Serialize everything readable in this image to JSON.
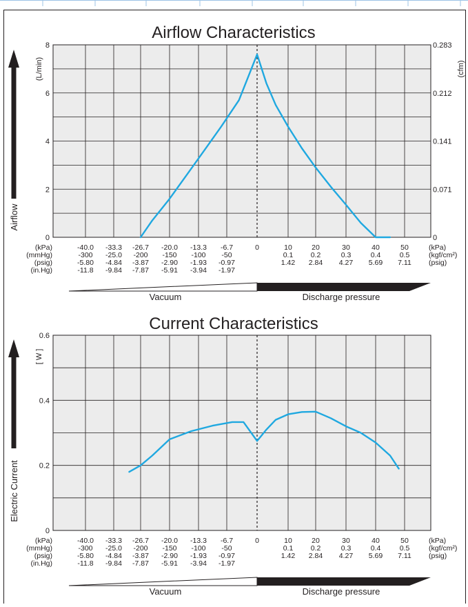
{
  "colors": {
    "curve": "#1fa8e0",
    "plot_bg": "#ececec",
    "grid": "#231f20",
    "arrow_dark": "#231f20",
    "arrow_light": "#ffffff"
  },
  "row_labels": [
    "(kPa)",
    "(mmHg)",
    "(psig)",
    "(in.Hg)"
  ],
  "right_row_labels": [
    "(kPa)",
    "(kgf/cm²)",
    "(psig)"
  ],
  "vacuum_columns": [
    [
      "-40.0",
      "-300",
      "-5.80",
      "-11.8"
    ],
    [
      "-33.3",
      "-25.0",
      "-4.84",
      "-9.84"
    ],
    [
      "-26.7",
      "-200",
      "-3.87",
      "-7.87"
    ],
    [
      "-20.0",
      "-150",
      "-2.90",
      "-5.91"
    ],
    [
      "-13.3",
      "-100",
      "-1.93",
      "-3.94"
    ],
    [
      "-6.7",
      "-50",
      "-0.97",
      "-1.97"
    ]
  ],
  "zero_label": "0",
  "pressure_columns": [
    [
      "10",
      "0.1",
      "1.42"
    ],
    [
      "20",
      "0.2",
      "2.84"
    ],
    [
      "30",
      "0.3",
      "4.27"
    ],
    [
      "40",
      "0.4",
      "5.69"
    ],
    [
      "50",
      "0.5",
      "7.11"
    ]
  ],
  "arrows": {
    "vacuum": "Vacuum",
    "discharge": "Discharge pressure"
  },
  "chart_data": [
    {
      "type": "line",
      "title": "Airflow Characteristics",
      "ylabel": "Airflow",
      "yunit": "(L/min)",
      "y2unit": "(cfm)",
      "xlim": [
        -40,
        50
      ],
      "ylim": [
        0,
        8
      ],
      "yticks": [
        "0",
        "2",
        "4",
        "6",
        "8"
      ],
      "y2ticks": [
        "0",
        "0.071",
        "0.141",
        "0.212",
        "0.283"
      ],
      "grid": true,
      "x": [
        -26.7,
        -24,
        -20,
        -16,
        -12,
        -8,
        -4,
        0,
        3,
        6,
        10,
        15,
        20,
        25,
        30,
        35,
        40,
        45
      ],
      "y": [
        0,
        0.7,
        1.6,
        2.6,
        3.6,
        4.6,
        5.7,
        7.6,
        6.4,
        5.5,
        4.6,
        3.7,
        2.9,
        2.1,
        1.35,
        0.6,
        0,
        0
      ]
    },
    {
      "type": "line",
      "title": "Current Characteristics",
      "ylabel": "Electric Current",
      "yunit": "[ W ]",
      "xlim": [
        -40,
        50
      ],
      "ylim": [
        0,
        0.6
      ],
      "yticks": [
        "0",
        "0.2",
        "0.4",
        "0.6"
      ],
      "grid": true,
      "x": [
        -29.5,
        -26.7,
        -24,
        -20,
        -15,
        -10,
        -5.5,
        -3,
        0,
        3,
        6,
        10,
        15,
        20,
        25,
        30,
        35,
        40,
        45,
        48
      ],
      "y": [
        0.18,
        0.2,
        0.23,
        0.28,
        0.305,
        0.322,
        0.333,
        0.333,
        0.275,
        0.31,
        0.34,
        0.357,
        0.364,
        0.365,
        0.345,
        0.32,
        0.3,
        0.27,
        0.23,
        0.19
      ]
    }
  ]
}
